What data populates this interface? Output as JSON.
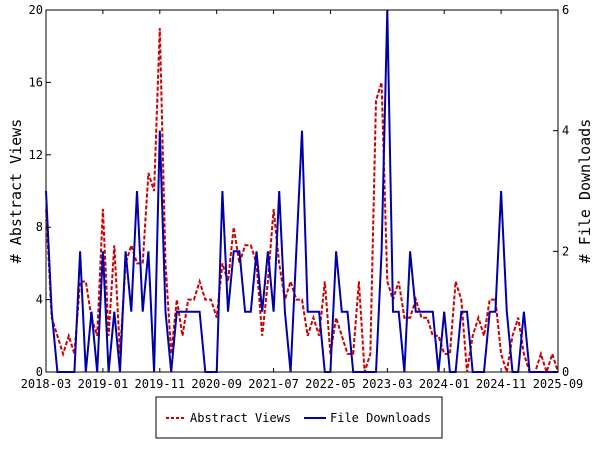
{
  "chart_data": {
    "type": "line",
    "title": "",
    "xlabel": "",
    "ylabel": "# Abstract Views",
    "y2label": "# File Downloads",
    "x_ticks": [
      "2018-03",
      "2019-01",
      "2019-11",
      "2020-09",
      "2021-07",
      "2022-05",
      "2023-03",
      "2024-01",
      "2024-11",
      "2025-09"
    ],
    "ylim": [
      0,
      20
    ],
    "y_ticks": [
      "0",
      "4",
      "8",
      "12",
      "16",
      "20"
    ],
    "y2lim": [
      0,
      6
    ],
    "y2_ticks": [
      "0",
      "2",
      "4",
      "6"
    ],
    "grid": false,
    "legend_position": "bottom-center",
    "x": [
      "2018-03",
      "2018-04",
      "2018-05",
      "2018-06",
      "2018-07",
      "2018-08",
      "2018-09",
      "2018-10",
      "2018-11",
      "2018-12",
      "2019-01",
      "2019-02",
      "2019-03",
      "2019-04",
      "2019-05",
      "2019-06",
      "2019-07",
      "2019-08",
      "2019-09",
      "2019-10",
      "2019-11",
      "2019-12",
      "2020-01",
      "2020-02",
      "2020-03",
      "2020-04",
      "2020-05",
      "2020-06",
      "2020-07",
      "2020-08",
      "2020-09",
      "2020-10",
      "2020-11",
      "2020-12",
      "2021-01",
      "2021-02",
      "2021-03",
      "2021-04",
      "2021-05",
      "2021-06",
      "2021-07",
      "2021-08",
      "2021-09",
      "2021-10",
      "2021-11",
      "2021-12",
      "2022-01",
      "2022-02",
      "2022-03",
      "2022-04",
      "2022-05",
      "2022-06",
      "2022-07",
      "2022-08",
      "2022-09",
      "2022-10",
      "2022-11",
      "2022-12",
      "2023-01",
      "2023-02",
      "2023-03",
      "2023-04",
      "2023-05",
      "2023-06",
      "2023-07",
      "2023-08",
      "2023-09",
      "2023-10",
      "2023-11",
      "2023-12",
      "2024-01",
      "2024-02",
      "2024-03",
      "2024-04",
      "2024-05",
      "2024-06",
      "2024-07",
      "2024-08",
      "2024-09",
      "2024-10",
      "2024-11",
      "2024-12",
      "2025-01",
      "2025-02",
      "2025-03",
      "2025-04",
      "2025-05",
      "2025-06",
      "2025-07",
      "2025-08",
      "2025-09"
    ],
    "series": [
      {
        "name": "Abstract Views",
        "axis": "left",
        "color": "#cc0000",
        "dash": true,
        "values": [
          9,
          3,
          2,
          1,
          2,
          1,
          5,
          5,
          3,
          2,
          9,
          2,
          7,
          1,
          6,
          7,
          6,
          6,
          11,
          10,
          19,
          6,
          1,
          4,
          2,
          4,
          4,
          5,
          4,
          4,
          3,
          6,
          5,
          8,
          6,
          7,
          7,
          6,
          2,
          5,
          9,
          6,
          4,
          5,
          4,
          4,
          2,
          3,
          2,
          5,
          1,
          3,
          2,
          1,
          1,
          5,
          0,
          1,
          15,
          16,
          5,
          4,
          5,
          3,
          3,
          4,
          3,
          3,
          2,
          2,
          1,
          1,
          5,
          4,
          0,
          2,
          3,
          2,
          4,
          4,
          1,
          0,
          2,
          3,
          1,
          0,
          0,
          1,
          0,
          1,
          0
        ]
      },
      {
        "name": "File Downloads",
        "axis": "right",
        "color": "#0000aa",
        "dash": false,
        "values": [
          3,
          1,
          0,
          0,
          0,
          0,
          2,
          0,
          1,
          0,
          2,
          0,
          1,
          0,
          2,
          1,
          3,
          1,
          2,
          0,
          4,
          1,
          0,
          1,
          1,
          1,
          1,
          1,
          0,
          0,
          0,
          3,
          1,
          2,
          2,
          1,
          1,
          2,
          1,
          2,
          1,
          3,
          1,
          0,
          2,
          4,
          1,
          1,
          1,
          0,
          0,
          2,
          1,
          1,
          0,
          0,
          0,
          0,
          0,
          2,
          6,
          1,
          1,
          0,
          2,
          1,
          1,
          1,
          1,
          0,
          1,
          0,
          0,
          1,
          1,
          0,
          0,
          0,
          1,
          1,
          3,
          1,
          0,
          0,
          1,
          0,
          0,
          0,
          0,
          0,
          0
        ]
      }
    ]
  }
}
